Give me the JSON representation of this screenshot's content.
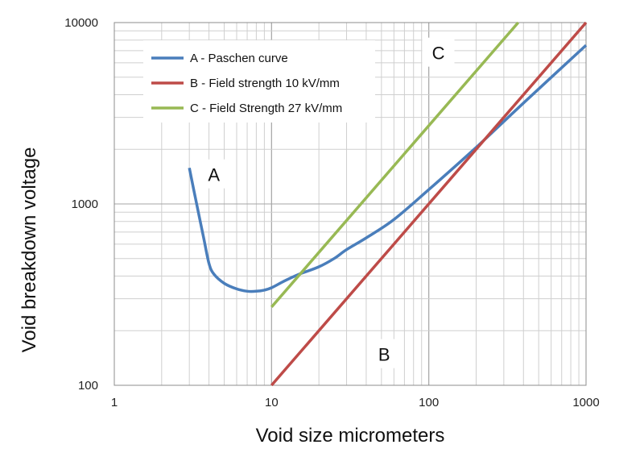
{
  "chart_data": {
    "type": "line",
    "scale": "log-log",
    "xlabel": "Void size micrometers",
    "ylabel": "Void breakdown voltage",
    "xlim": [
      1,
      1000
    ],
    "ylim": [
      100,
      10000
    ],
    "x_tick_labels": [
      "1",
      "10",
      "100",
      "1000"
    ],
    "y_tick_labels": [
      "100",
      "1000",
      "10000"
    ],
    "grid": true,
    "legend_position": "top-left",
    "series": [
      {
        "name": "A - Paschen curve",
        "color": "#4a7ebb",
        "x": [
          3,
          3.3,
          3.7,
          4.0,
          4.3,
          5,
          6,
          7,
          8,
          9,
          10,
          12,
          15,
          20,
          25,
          30,
          40,
          60,
          100,
          200,
          400,
          1000
        ],
        "y": [
          1580,
          1050,
          650,
          470,
          410,
          365,
          340,
          330,
          330,
          335,
          345,
          375,
          410,
          450,
          500,
          560,
          650,
          820,
          1200,
          2050,
          3600,
          7500
        ]
      },
      {
        "name": "B - Field strength 10 kV/mm",
        "color": "#be4b48",
        "x": [
          10,
          1000
        ],
        "y": [
          100,
          10000
        ]
      },
      {
        "name": "C - Field Strength 27 kV/mm",
        "color": "#98b954",
        "x": [
          10,
          370
        ],
        "y": [
          270,
          10000
        ]
      }
    ],
    "annotations": [
      {
        "text": "A",
        "x": 4.3,
        "y": 1450
      },
      {
        "text": "B",
        "x": 52,
        "y": 148
      },
      {
        "text": "C",
        "x": 115,
        "y": 6800
      }
    ]
  }
}
